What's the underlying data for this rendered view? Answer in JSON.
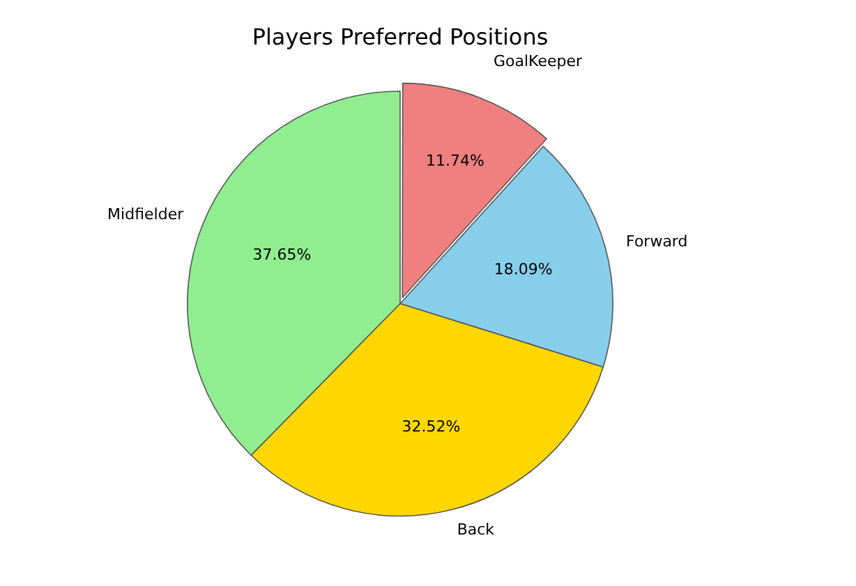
{
  "chart_data": {
    "type": "pie",
    "title": "Players Preferred Positions",
    "categories": [
      "GoalKeeper",
      "Forward",
      "Back",
      "Midfielder"
    ],
    "values": [
      11.74,
      18.09,
      32.52,
      37.65
    ],
    "colors": [
      "#f08080",
      "#87ceeb",
      "#ffd700",
      "#90ee90"
    ],
    "value_labels": [
      "11.74%",
      "18.09%",
      "32.52%",
      "37.65%"
    ],
    "legend": false
  }
}
